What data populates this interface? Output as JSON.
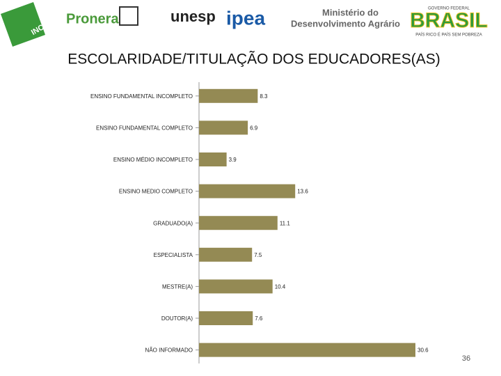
{
  "header": {
    "logos": [
      "INCRA",
      "Pronera",
      "unesp",
      "ipea",
      "Ministério do",
      "Desenvolvimento Agrário",
      "GOVERNO FEDERAL",
      "BRASIL",
      "PAÍS RICO É PAÍS SEM POBREZA"
    ]
  },
  "chart_data": {
    "type": "hbar",
    "title": "ESCOLARIDADE/TITULAÇÃO DOS EDUCADORES(AS)",
    "categories": [
      "ENSINO FUNDAMENTAL INCOMPLETO",
      "ENSINO FUNDAMENTAL COMPLETO",
      "ENSINO MÉDIO INCOMPLETO",
      "ENSINO MEDIO COMPLETO",
      "GRADUADO(A)",
      "ESPECIALISTA",
      "MESTRE(A)",
      "DOUTOR(A)",
      "NÃO INFORMADO"
    ],
    "values": [
      8.3,
      6.9,
      3.9,
      13.6,
      11.1,
      7.5,
      10.4,
      7.6,
      30.6
    ],
    "color": "#948a54"
  },
  "page_number": "36"
}
